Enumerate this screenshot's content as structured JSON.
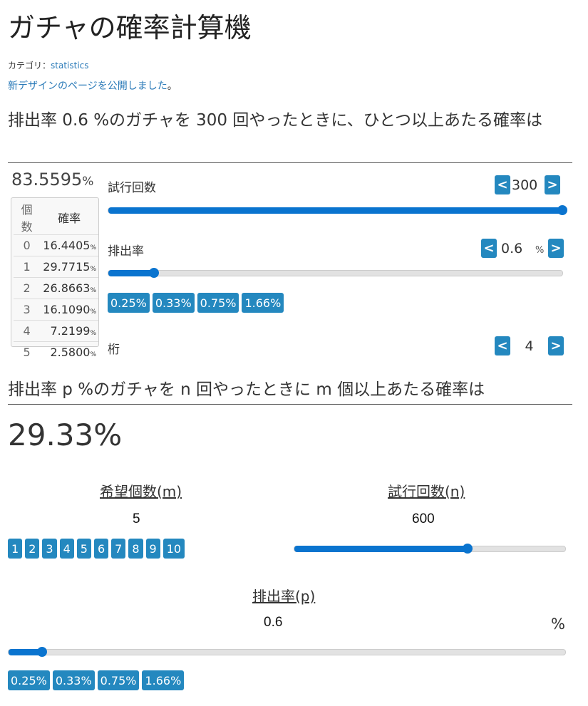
{
  "title": "ガチャの確率計算機",
  "category_label": "カテゴリ：",
  "category_link": "statistics",
  "notice_link": "新デザインのページを公開しました",
  "notice_suffix": "。",
  "section1": {
    "heading": "排出率 0.6 %のガチャを 300 回やったときに、ひとつ以上あたる確率は",
    "result": "83.5595",
    "result_unit": "%",
    "table": {
      "headers": [
        "個数",
        "確率"
      ],
      "rows": [
        [
          "0",
          "16.4405"
        ],
        [
          "1",
          "29.7715"
        ],
        [
          "2",
          "26.8663"
        ],
        [
          "3",
          "16.1090"
        ],
        [
          "4",
          "7.2199"
        ],
        [
          "5",
          "2.5800"
        ]
      ],
      "unit": "%"
    },
    "trials": {
      "label": "試行回数",
      "value": "300",
      "slider_fill_percent": 100
    },
    "rate": {
      "label": "排出率",
      "value": "0.6",
      "unit": "%",
      "slider_fill_percent": 10
    },
    "presets": [
      "0.25%",
      "0.33%",
      "0.75%",
      "1.66%"
    ],
    "digits": {
      "label": "桁",
      "value": "4"
    },
    "prev": "<",
    "next": ">"
  },
  "section2": {
    "heading": "排出率 p %のガチャを n 回やったときに m 個以上あたる確率は",
    "result": "29.33%",
    "m": {
      "label": "希望個数(m)",
      "value": "5",
      "buttons": [
        "1",
        "2",
        "3",
        "4",
        "5",
        "6",
        "7",
        "8",
        "9",
        "10"
      ]
    },
    "n": {
      "label": "試行回数(n)",
      "value": "600",
      "slider_fill_percent": 64
    },
    "p": {
      "label": "排出率(p)",
      "value": "0.6",
      "unit": "%",
      "slider_fill_percent": 6
    },
    "presets": [
      "0.25%",
      "0.33%",
      "0.75%",
      "1.66%"
    ]
  },
  "colors": {
    "button": "#2488bf",
    "slider": "#0a74cf",
    "link": "#2a7ab8"
  }
}
